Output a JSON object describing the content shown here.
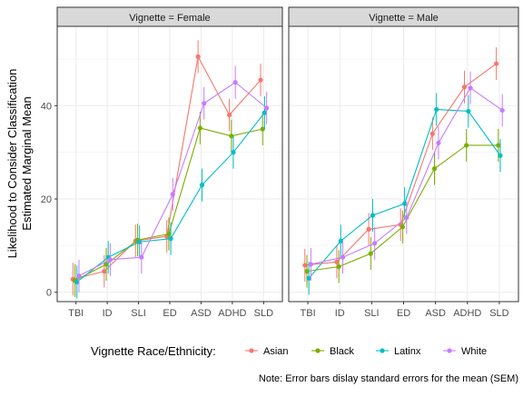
{
  "chart_data": {
    "type": "line",
    "ylabel_line1": "Likelihood to Consider Classification",
    "ylabel_line2": "Estimated Marginal Mean",
    "categories": [
      "TBI",
      "ID",
      "SLI",
      "ED",
      "ASD",
      "ADHD",
      "SLD"
    ],
    "y_ticks": [
      0,
      20,
      40
    ],
    "ylim": [
      -2,
      57
    ],
    "grid": true,
    "legend": {
      "title": "Vignette Race/Ethnicity:",
      "placement": "bottom",
      "entries": [
        "Asian",
        "Black",
        "Latinx",
        "White"
      ]
    },
    "note": "Note: Error bars dislay standard errors for the mean (SEM)",
    "colors": {
      "Asian": "#F8766D",
      "Black": "#7CAE00",
      "Latinx": "#00BFC4",
      "White": "#C77CFF"
    },
    "panels": [
      {
        "strip": "Vignette = Female",
        "series": [
          {
            "name": "Asian",
            "values": [
              2.8,
              4.5,
              11.0,
              12.0,
              50.5,
              38.0,
              45.5
            ],
            "sem": [
              3.5,
              3.5,
              3.5,
              3.5,
              3.5,
              3.5,
              3.5
            ]
          },
          {
            "name": "Black",
            "values": [
              2.5,
              6.0,
              11.2,
              12.5,
              35.2,
              33.5,
              35.0
            ],
            "sem": [
              3.5,
              3.5,
              3.5,
              3.5,
              3.5,
              3.5,
              3.5
            ]
          },
          {
            "name": "Latinx",
            "values": [
              2.2,
              7.5,
              10.8,
              11.5,
              23.0,
              30.0,
              38.5
            ],
            "sem": [
              3.5,
              3.5,
              3.5,
              3.5,
              3.5,
              3.5,
              3.5
            ]
          },
          {
            "name": "White",
            "values": [
              3.5,
              7.0,
              7.5,
              21.0,
              40.5,
              45.0,
              39.5
            ],
            "sem": [
              3.5,
              3.5,
              3.5,
              3.5,
              3.5,
              3.5,
              3.5
            ]
          }
        ]
      },
      {
        "strip": "Vignette = Male",
        "series": [
          {
            "name": "Asian",
            "values": [
              5.8,
              6.5,
              13.5,
              14.5,
              34.0,
              44.0,
              49.0
            ],
            "sem": [
              3.5,
              3.5,
              3.5,
              3.5,
              3.5,
              3.5,
              3.5
            ]
          },
          {
            "name": "Black",
            "values": [
              4.5,
              5.5,
              8.3,
              14.0,
              26.5,
              31.5,
              31.5
            ],
            "sem": [
              3.5,
              3.5,
              3.5,
              3.5,
              3.5,
              3.5,
              3.5
            ]
          },
          {
            "name": "Latinx",
            "values": [
              3.0,
              11.0,
              16.5,
              19.0,
              39.2,
              38.8,
              29.3
            ],
            "sem": [
              3.5,
              3.5,
              3.5,
              3.5,
              3.5,
              3.5,
              3.5
            ]
          },
          {
            "name": "White",
            "values": [
              6.0,
              7.5,
              10.5,
              16.0,
              32.0,
              43.8,
              39.0
            ],
            "sem": [
              3.5,
              3.5,
              3.5,
              3.5,
              3.5,
              3.5,
              3.5
            ]
          }
        ]
      }
    ]
  }
}
